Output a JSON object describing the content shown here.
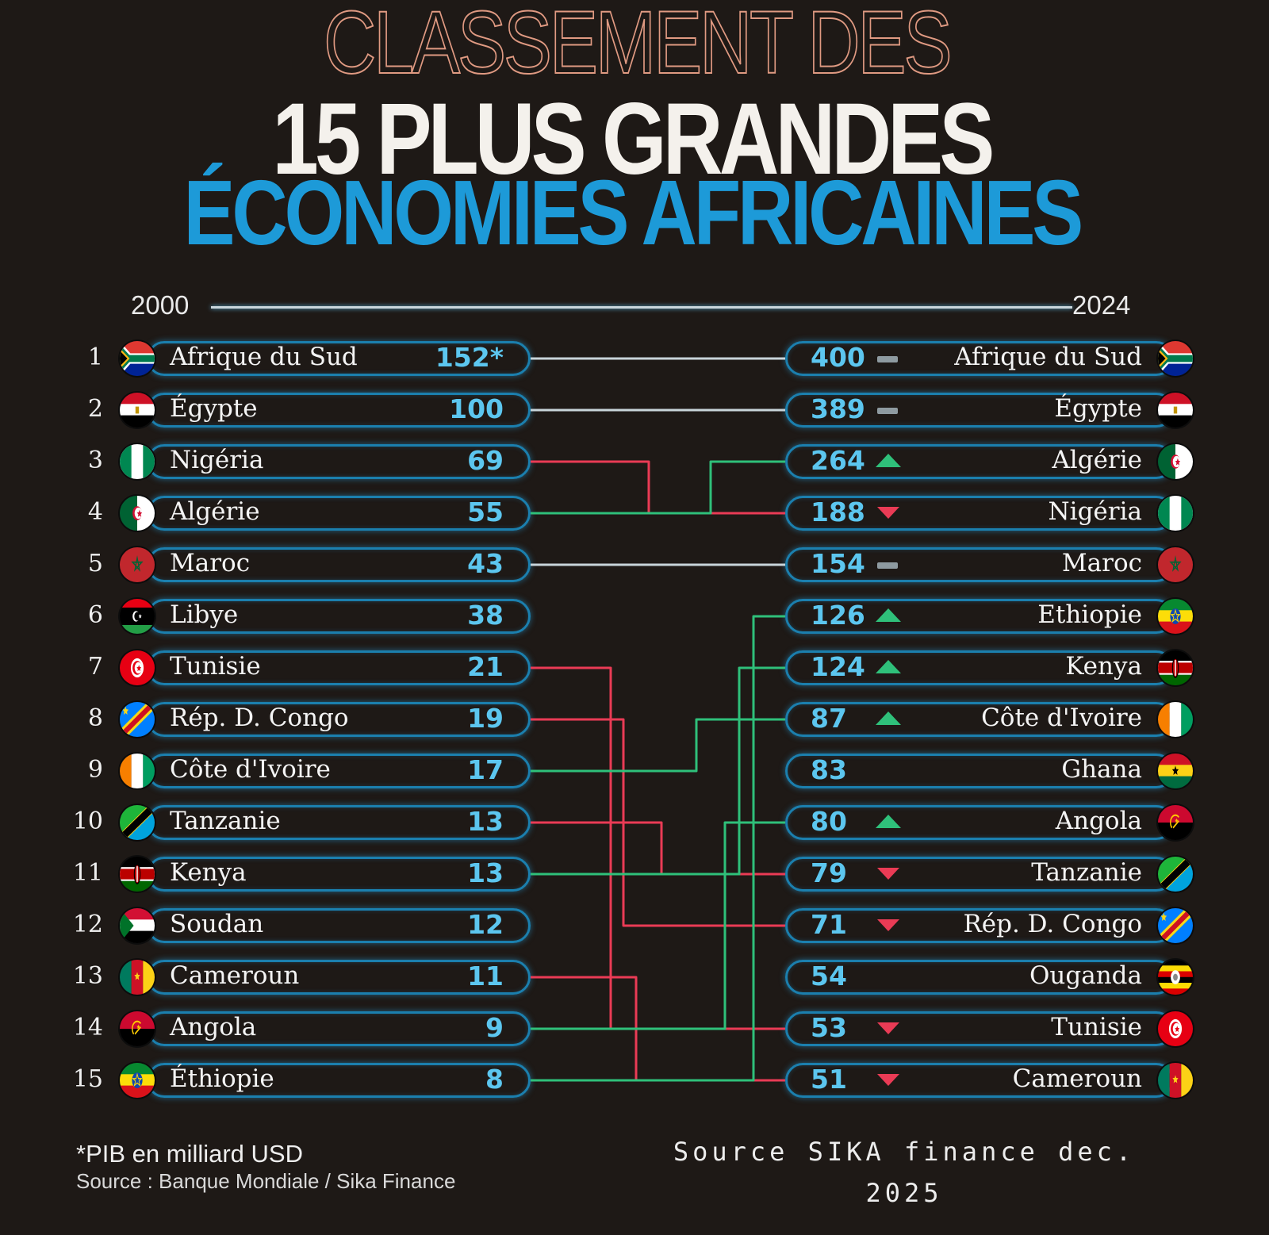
{
  "title": {
    "line1": "CLASSEMENT DES",
    "line2": "15 PLUS GRANDES",
    "line3": "ÉCONOMIES AFRICAINES"
  },
  "chart_data": {
    "type": "table",
    "start_year": "2000",
    "end_year": "2024",
    "left": [
      {
        "rank": "1",
        "country": "Afrique du Sud",
        "value_label": "152*",
        "value": 152,
        "flag": "south-africa-flag"
      },
      {
        "rank": "2",
        "country": "Égypte",
        "value_label": "100",
        "value": 100,
        "flag": "egypt-flag"
      },
      {
        "rank": "3",
        "country": "Nigéria",
        "value_label": "69",
        "value": 69,
        "flag": "nigeria-flag"
      },
      {
        "rank": "4",
        "country": "Algérie",
        "value_label": "55",
        "value": 55,
        "flag": "algeria-flag"
      },
      {
        "rank": "5",
        "country": "Maroc",
        "value_label": "43",
        "value": 43,
        "flag": "morocco-flag"
      },
      {
        "rank": "6",
        "country": "Libye",
        "value_label": "38",
        "value": 38,
        "flag": "libya-flag"
      },
      {
        "rank": "7",
        "country": "Tunisie",
        "value_label": "21",
        "value": 21,
        "flag": "tunisia-flag"
      },
      {
        "rank": "8",
        "country": "Rép. D. Congo",
        "value_label": "19",
        "value": 19,
        "flag": "drc-flag"
      },
      {
        "rank": "9",
        "country": "Côte d'Ivoire",
        "value_label": "17",
        "value": 17,
        "flag": "ivory-coast-flag"
      },
      {
        "rank": "10",
        "country": "Tanzanie",
        "value_label": "13",
        "value": 13,
        "flag": "tanzania-flag"
      },
      {
        "rank": "11",
        "country": "Kenya",
        "value_label": "13",
        "value": 13,
        "flag": "kenya-flag"
      },
      {
        "rank": "12",
        "country": "Soudan",
        "value_label": "12",
        "value": 12,
        "flag": "sudan-flag"
      },
      {
        "rank": "13",
        "country": "Cameroun",
        "value_label": "11",
        "value": 11,
        "flag": "cameroon-flag"
      },
      {
        "rank": "14",
        "country": "Angola",
        "value_label": "9",
        "value": 9,
        "flag": "angola-flag"
      },
      {
        "rank": "15",
        "country": "Éthiopie",
        "value_label": "8",
        "value": 8,
        "flag": "ethiopia-flag"
      }
    ],
    "right": [
      {
        "country": "Afrique du Sud",
        "value_label": "400",
        "value": 400,
        "trend": "same",
        "flag": "south-africa-flag"
      },
      {
        "country": "Égypte",
        "value_label": "389",
        "value": 389,
        "trend": "same",
        "flag": "egypt-flag"
      },
      {
        "country": "Algérie",
        "value_label": "264",
        "value": 264,
        "trend": "up",
        "flag": "algeria-flag"
      },
      {
        "country": "Nigéria",
        "value_label": "188",
        "value": 188,
        "trend": "down",
        "flag": "nigeria-flag"
      },
      {
        "country": "Maroc",
        "value_label": "154",
        "value": 154,
        "trend": "same",
        "flag": "morocco-flag"
      },
      {
        "country": "Ethiopie",
        "value_label": "126",
        "value": 126,
        "trend": "up",
        "flag": "ethiopia-flag"
      },
      {
        "country": "Kenya",
        "value_label": "124",
        "value": 124,
        "trend": "up",
        "flag": "kenya-flag"
      },
      {
        "country": "Côte d'Ivoire",
        "value_label": "87",
        "value": 87,
        "trend": "up",
        "flag": "ivory-coast-flag"
      },
      {
        "country": "Ghana",
        "value_label": "83",
        "value": 83,
        "trend": "none",
        "flag": "ghana-flag"
      },
      {
        "country": "Angola",
        "value_label": "80",
        "value": 80,
        "trend": "up",
        "flag": "angola-flag"
      },
      {
        "country": "Tanzanie",
        "value_label": "79",
        "value": 79,
        "trend": "down",
        "flag": "tanzania-flag"
      },
      {
        "country": "Rép. D. Congo",
        "value_label": "71",
        "value": 71,
        "trend": "down",
        "flag": "drc-flag"
      },
      {
        "country": "Ouganda",
        "value_label": "54",
        "value": 54,
        "trend": "none",
        "flag": "uganda-flag"
      },
      {
        "country": "Tunisie",
        "value_label": "53",
        "value": 53,
        "trend": "down",
        "flag": "tunisia-flag"
      },
      {
        "country": "Cameroun",
        "value_label": "51",
        "value": 51,
        "trend": "down",
        "flag": "cameroon-flag"
      }
    ],
    "links": [
      {
        "from": 1,
        "to": 1,
        "trend": "same"
      },
      {
        "from": 2,
        "to": 2,
        "trend": "same"
      },
      {
        "from": 3,
        "to": 4,
        "trend": "down"
      },
      {
        "from": 4,
        "to": 3,
        "trend": "up"
      },
      {
        "from": 5,
        "to": 5,
        "trend": "same"
      },
      {
        "from": 7,
        "to": 14,
        "trend": "down"
      },
      {
        "from": 8,
        "to": 12,
        "trend": "down"
      },
      {
        "from": 9,
        "to": 8,
        "trend": "up"
      },
      {
        "from": 10,
        "to": 11,
        "trend": "down"
      },
      {
        "from": 11,
        "to": 7,
        "trend": "up"
      },
      {
        "from": 13,
        "to": 15,
        "trend": "down"
      },
      {
        "from": 14,
        "to": 10,
        "trend": "up"
      },
      {
        "from": 15,
        "to": 6,
        "trend": "up"
      }
    ],
    "unit_note": "*PIB en milliard USD"
  },
  "colors": {
    "up": "#2fc07a",
    "down": "#ea3b55",
    "same": "#c8d4da",
    "value": "#5cc6ef",
    "pill_border": "#1b7fae"
  },
  "footer": {
    "note": "*PIB en milliard USD",
    "source": "Source : Banque Mondiale / Sika Finance",
    "credit_line1": "Source SIKA finance dec.",
    "credit_line2": "2025"
  }
}
